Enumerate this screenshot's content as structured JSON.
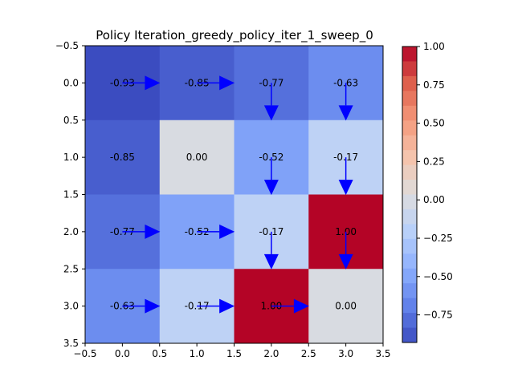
{
  "chart_data": {
    "type": "heatmap",
    "title": "Policy Iteration_greedy_policy_iter_1_sweep_0",
    "xlabel": "",
    "ylabel": "",
    "rows": 4,
    "cols": 4,
    "values": [
      [
        -0.93,
        -0.85,
        -0.77,
        -0.63
      ],
      [
        -0.85,
        0.0,
        -0.52,
        -0.17
      ],
      [
        -0.77,
        -0.52,
        -0.17,
        1.0
      ],
      [
        -0.63,
        -0.17,
        1.0,
        0.0
      ]
    ],
    "cell_labels": [
      [
        "-0.93",
        "-0.85",
        "-0.77",
        "-0.63"
      ],
      [
        "-0.85",
        "0.00",
        "-0.52",
        "-0.17"
      ],
      [
        "-0.77",
        "-0.52",
        "-0.17",
        "1.00"
      ],
      [
        "-0.63",
        "-0.17",
        "1.00",
        "0.00"
      ]
    ],
    "policy_arrows": [
      [
        "right",
        "right",
        "down",
        "down"
      ],
      [
        "none",
        "none",
        "down",
        "down"
      ],
      [
        "right",
        "right",
        "down",
        "down"
      ],
      [
        "right",
        "right",
        "right",
        "none"
      ]
    ],
    "arrow_color": "#0000ff",
    "colormap": "coolwarm",
    "xlim": [
      -0.5,
      3.5
    ],
    "ylim": [
      3.5,
      -0.5
    ],
    "x_ticks": [
      "−0.5",
      "0.0",
      "0.5",
      "1.0",
      "1.5",
      "2.0",
      "2.5",
      "3.0",
      "3.5"
    ],
    "y_ticks": [
      "−0.5",
      "0.0",
      "0.5",
      "1.0",
      "1.5",
      "2.0",
      "2.5",
      "3.0",
      "3.5"
    ],
    "colorbar": {
      "min": -0.93,
      "max": 1.0,
      "ticks": [
        "1.00",
        "0.75",
        "0.50",
        "0.25",
        "0.00",
        "−0.25",
        "−0.50",
        "−0.75"
      ],
      "tick_values": [
        1.0,
        0.75,
        0.5,
        0.25,
        0.0,
        -0.25,
        -0.5,
        -0.75
      ]
    },
    "grid": false
  }
}
